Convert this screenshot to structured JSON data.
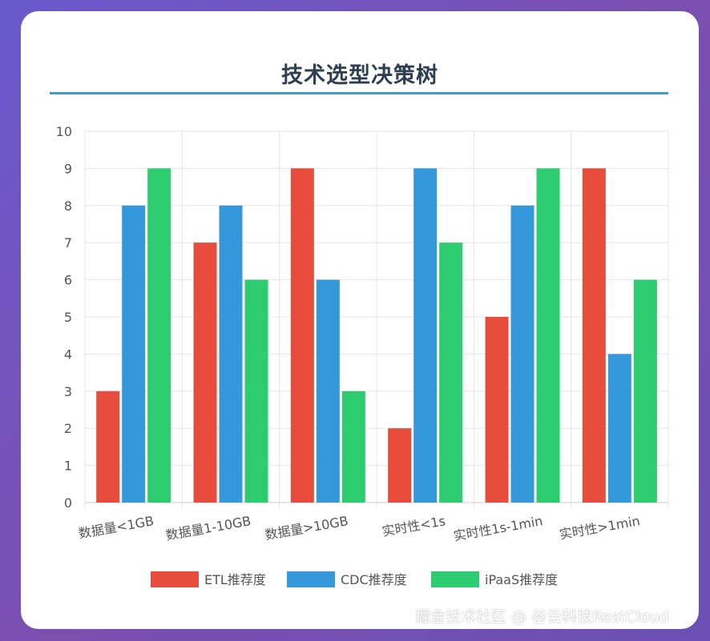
{
  "header": {
    "title": "技术选型决策树"
  },
  "watermark": "掘金技术社区 @ 谷云科技RestCloud",
  "chart_data": {
    "type": "bar",
    "title": "技术选型决策树",
    "categories": [
      "数据量<1GB",
      "数据量1-10GB",
      "数据量>10GB",
      "实时性<1s",
      "实时性1s-1min",
      "实时性>1min"
    ],
    "series": [
      {
        "name": "ETL推荐度",
        "color": "#e74c3c",
        "values": [
          3,
          7,
          9,
          2,
          5,
          9
        ]
      },
      {
        "name": "CDC推荐度",
        "color": "#3498db",
        "values": [
          8,
          8,
          6,
          9,
          8,
          4
        ]
      },
      {
        "name": "iPaaS推荐度",
        "color": "#2ecc71",
        "values": [
          9,
          6,
          3,
          7,
          9,
          6
        ]
      }
    ],
    "ylim": [
      0,
      10
    ],
    "yticks": [
      0,
      1,
      2,
      3,
      4,
      5,
      6,
      7,
      8,
      9,
      10
    ],
    "xlabel": "",
    "ylabel": "",
    "grid": true,
    "legend": "bottom"
  }
}
